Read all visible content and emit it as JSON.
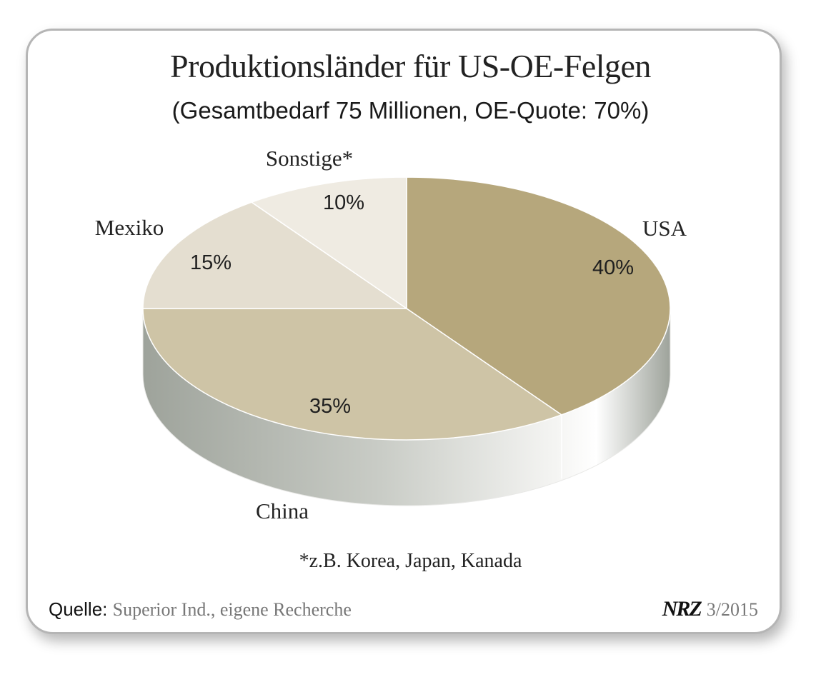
{
  "chart_data": {
    "type": "pie",
    "title": "Produktionsländer für US-OE-Felgen",
    "subtitle": "(Gesamtbedarf 75 Millionen, OE-Quote: 70%)",
    "unit": "%",
    "slices": [
      {
        "label": "USA",
        "value": 40,
        "value_label": "40%",
        "color": "#b6a77c"
      },
      {
        "label": "China",
        "value": 35,
        "value_label": "35%",
        "color": "#cec4a6"
      },
      {
        "label": "Mexiko",
        "value": 15,
        "value_label": "15%",
        "color": "#e4ded0"
      },
      {
        "label": "Sonstige*",
        "value": 10,
        "value_label": "10%",
        "color": "#efebe2"
      }
    ],
    "footnote": "*z.B. Korea, Japan, Kanada",
    "side_colors": {
      "dark": "#9ea39b",
      "mid": "#c9ccc6",
      "light": "#f4f4f2"
    }
  },
  "source": {
    "label": "Quelle:",
    "text": "Superior Ind., eigene Recherche"
  },
  "brand": {
    "logo": "NRZ",
    "issue": "3/2015"
  }
}
